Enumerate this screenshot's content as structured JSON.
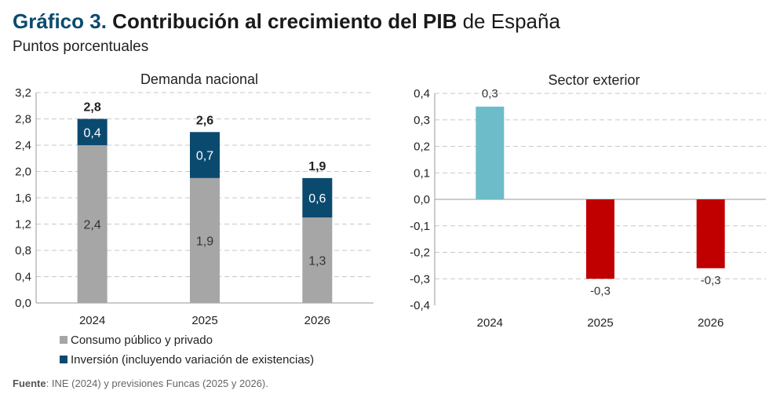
{
  "title": {
    "number": "Gráfico 3.",
    "main": "Contribución al crecimiento del PIB",
    "suffix": "de España"
  },
  "subtitle": "Puntos porcentuales",
  "source": {
    "label": "Fuente",
    "text": ": INE (2024) y previsiones Funcas (2025 y 2026)."
  },
  "colors": {
    "consumo": "#a6a6a6",
    "inversion": "#0b4a6f",
    "positivo": "#6dbcc9",
    "negativo": "#c00000",
    "grid": "#c8c8c8",
    "axis": "#999999"
  },
  "legend": [
    {
      "label": "Consumo público y privado",
      "color": "#a6a6a6"
    },
    {
      "label": "Inversión (incluyendo variación de existencias)",
      "color": "#0b4a6f"
    }
  ],
  "chart_data": [
    {
      "type": "bar",
      "stacked": true,
      "title": "Demanda nacional",
      "categories": [
        "2024",
        "2025",
        "2026"
      ],
      "series": [
        {
          "name": "Consumo público y privado",
          "values": [
            2.4,
            1.9,
            1.3
          ],
          "labels": [
            "2,4",
            "1,9",
            "1,3"
          ]
        },
        {
          "name": "Inversión (incluyendo variación de existencias)",
          "values": [
            0.4,
            0.7,
            0.6
          ],
          "labels": [
            "0,4",
            "0,7",
            "0,6"
          ]
        }
      ],
      "totals": [
        2.8,
        2.6,
        1.9
      ],
      "total_labels": [
        "2,8",
        "2,6",
        "1,9"
      ],
      "ylim": [
        0,
        3.2
      ],
      "yticks": [
        "0,0",
        "0,4",
        "0,8",
        "1,2",
        "1,6",
        "2,0",
        "2,4",
        "2,8",
        "3,2"
      ],
      "grid": true,
      "legend_position": "bottom"
    },
    {
      "type": "bar",
      "title": "Sector exterior",
      "categories": [
        "2024",
        "2025",
        "2026"
      ],
      "values": [
        0.35,
        -0.3,
        -0.26
      ],
      "labels": [
        "0,3",
        "-0,3",
        "-0,3"
      ],
      "ylim": [
        -0.4,
        0.4
      ],
      "yticks": [
        "-0,4",
        "-0,3",
        "-0,2",
        "-0,1",
        "0,0",
        "0,1",
        "0,2",
        "0,3",
        "0,4"
      ],
      "grid": true
    }
  ]
}
